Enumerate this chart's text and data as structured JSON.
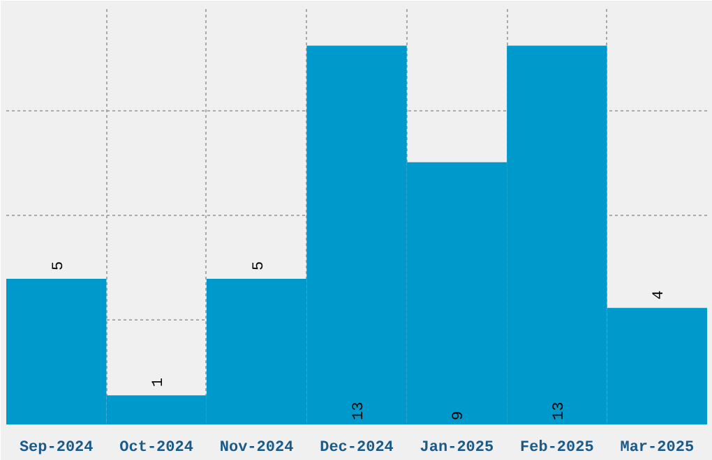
{
  "chart_data": {
    "type": "bar",
    "categories": [
      "Sep-2024",
      "Oct-2024",
      "Nov-2024",
      "Dec-2024",
      "Jan-2025",
      "Feb-2025",
      "Mar-2025"
    ],
    "values": [
      5,
      1,
      5,
      13,
      9,
      13,
      4
    ],
    "color": "#0099cc",
    "data_labels": true,
    "grid": true,
    "ylim": [
      0,
      14.35
    ],
    "yticks": [
      {
        "value": 0,
        "label": null
      },
      {
        "value": 3.5875,
        "label": null
      },
      {
        "value": 7.175,
        "label": null
      },
      {
        "value": 10.7625,
        "label": null
      },
      {
        "value": 14.35,
        "label": null
      }
    ],
    "tick_labels": "x"
  }
}
